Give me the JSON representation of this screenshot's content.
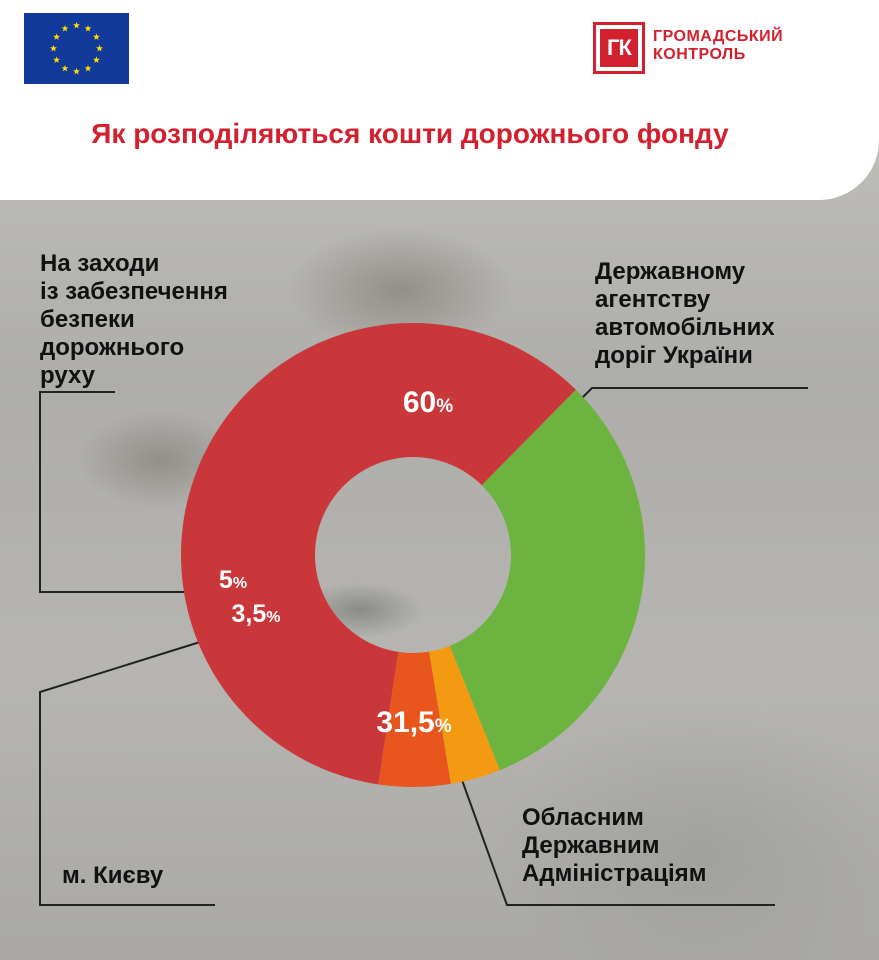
{
  "title": "Як розподіляються кошти дорожнього фонду",
  "logo": {
    "mark": "ГК",
    "line1": "ГРОМАДСЬКИЙ",
    "line2": "КОНТРОЛЬ"
  },
  "colors": {
    "accent": "#d3202e",
    "agency": "#c9373b",
    "regional": "#6db33f",
    "kyiv": "#f49a12",
    "safety": "#e9561d"
  },
  "chart_data": {
    "type": "pie",
    "title": "Як розподіляються кошти дорожнього фонду",
    "slices": [
      {
        "label": "Державному агентству автомобільних доріг України",
        "value": 60,
        "display_value": "60",
        "unit": "%"
      },
      {
        "label": "Обласним Державним Адміністраціям",
        "value": 31.5,
        "display_value": "31,5",
        "unit": "%"
      },
      {
        "label": "м. Києву",
        "value": 3.5,
        "display_value": "3,5",
        "unit": "%"
      },
      {
        "label": "На заходи із забезпечення безпеки дорожнього руху",
        "value": 5,
        "display_value": "5",
        "unit": "%"
      }
    ]
  },
  "labels": {
    "agency": "Державному\nагентству\nавтомобільних\nдоріг України",
    "regional": "Обласним\nДержавним\nАдміністраціям",
    "kyiv": "м. Києву",
    "safety": "На заходи\nіз забезпечення\nбезпеки\nдорожнього\nруху"
  }
}
